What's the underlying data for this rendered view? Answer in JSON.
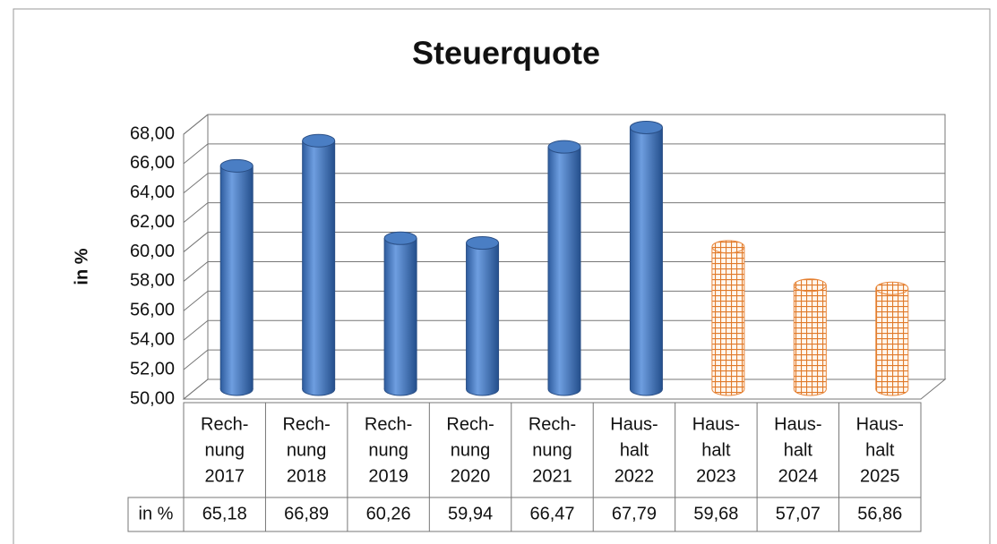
{
  "chart_data": {
    "type": "bar3d",
    "title": "Steuerquote",
    "ylabel": "in %",
    "table_row_label": "in %",
    "categories": [
      [
        "Rech-",
        "nung",
        "2017"
      ],
      [
        "Rech-",
        "nung",
        "2018"
      ],
      [
        "Rech-",
        "nung",
        "2019"
      ],
      [
        "Rech-",
        "nung",
        "2020"
      ],
      [
        "Rech-",
        "nung",
        "2021"
      ],
      [
        "Haus-",
        "halt",
        "2022"
      ],
      [
        "Haus-",
        "halt",
        "2023"
      ],
      [
        "Haus-",
        "halt",
        "2024"
      ],
      [
        "Haus-",
        "halt",
        "2025"
      ]
    ],
    "values": [
      65.18,
      66.89,
      60.26,
      59.94,
      66.47,
      67.79,
      59.68,
      57.07,
      56.86
    ],
    "value_labels": [
      "65,18",
      "66,89",
      "60,26",
      "59,94",
      "66,47",
      "67,79",
      "59,68",
      "57,07",
      "56,86"
    ],
    "colors": [
      "#4a7ec4",
      "#4a7ec4",
      "#4a7ec4",
      "#4a7ec4",
      "#4a7ec4",
      "#4a7ec4",
      "#e8863a",
      "#e8863a",
      "#e8863a"
    ],
    "hatched": [
      false,
      false,
      false,
      false,
      false,
      false,
      true,
      true,
      true
    ],
    "ylim": [
      50,
      68
    ],
    "yticks": [
      {
        "value": 50,
        "label": "50,00"
      },
      {
        "value": 52,
        "label": "52,00"
      },
      {
        "value": 54,
        "label": "54,00"
      },
      {
        "value": 56,
        "label": "56,00"
      },
      {
        "value": 58,
        "label": "58,00"
      },
      {
        "value": 60,
        "label": "60,00"
      },
      {
        "value": 62,
        "label": "62,00"
      },
      {
        "value": 64,
        "label": "64,00"
      },
      {
        "value": 66,
        "label": "66,00"
      },
      {
        "value": 68,
        "label": "68,00"
      }
    ],
    "grid": true
  }
}
